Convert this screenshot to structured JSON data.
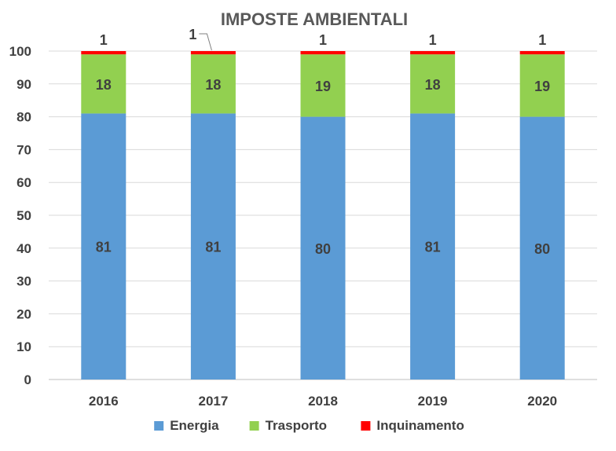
{
  "chart_data": {
    "type": "bar",
    "stacked": true,
    "title": "IMPOSTE AMBIENTALI",
    "xlabel": "",
    "ylabel": "",
    "ylim": [
      0,
      100
    ],
    "yticks": [
      0,
      10,
      20,
      30,
      40,
      50,
      60,
      70,
      80,
      90,
      100
    ],
    "grid": true,
    "legend_position": "bottom",
    "categories": [
      "2016",
      "2017",
      "2018",
      "2019",
      "2020"
    ],
    "series": [
      {
        "name": "Energia",
        "color": "#5b9bd5",
        "values": [
          81,
          81,
          80,
          81,
          80
        ],
        "labels": [
          "81",
          "81",
          "80",
          "81",
          "80"
        ]
      },
      {
        "name": "Trasporto",
        "color": "#92d050",
        "values": [
          18,
          18,
          19,
          18,
          19
        ],
        "labels": [
          "18",
          "18",
          "19",
          "18",
          "19"
        ]
      },
      {
        "name": "Inquinamento",
        "color": "#ff0000",
        "values": [
          1,
          1,
          1,
          1,
          1
        ],
        "labels": [
          "1",
          "1",
          "1",
          "1",
          "1"
        ]
      }
    ]
  }
}
